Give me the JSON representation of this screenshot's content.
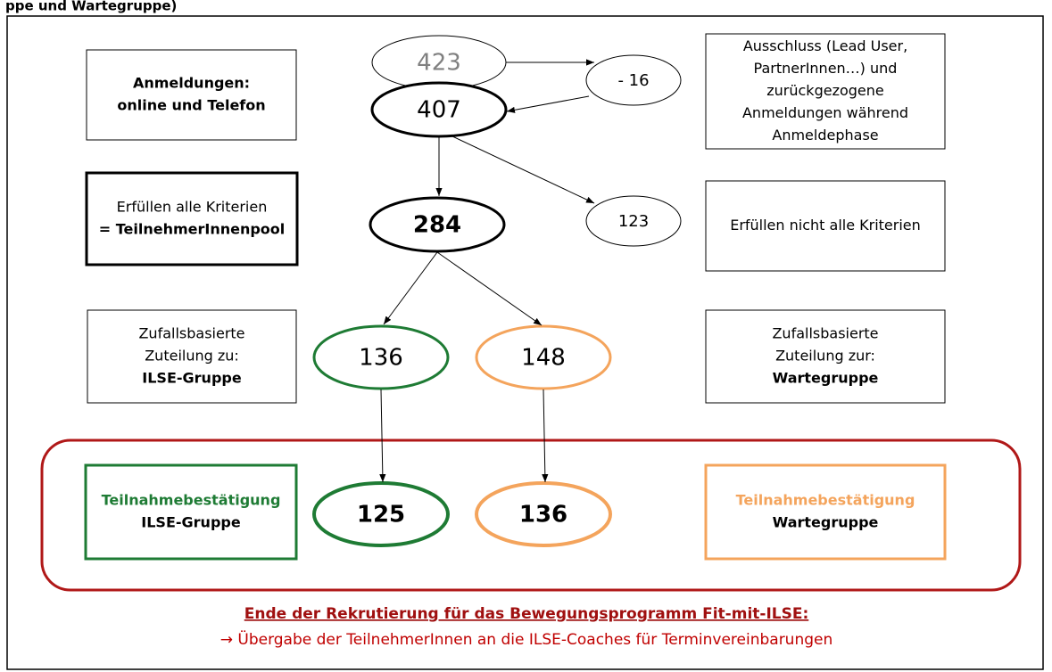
{
  "header": "ppe und Wartegruppe)",
  "boxes": [
    {
      "lines": [
        "Anmeldungen:",
        "online und Telefon"
      ],
      "bold": [
        true,
        true
      ]
    },
    {
      "lines": [
        "Ausschluss (Lead User,",
        "PartnerInnen…) und",
        "zurückgezogene",
        "Anmeldungen während",
        "Anmeldephase"
      ],
      "bold": [
        false,
        false,
        false,
        false,
        false
      ]
    },
    {
      "lines": [
        "Erfüllen alle Kriterien",
        "= TeilnehmerInnenpool"
      ],
      "bold": [
        false,
        true
      ]
    },
    {
      "lines": [
        "Erfüllen nicht alle Kriterien"
      ],
      "bold": [
        false
      ]
    },
    {
      "lines": [
        "Zufallsbasierte",
        "Zuteilung zu:",
        "ILSE-Gruppe"
      ],
      "bold": [
        false,
        false,
        true
      ]
    },
    {
      "lines": [
        "Zufallsbasierte",
        "Zuteilung zur:",
        "Wartegruppe"
      ],
      "bold": [
        false,
        false,
        true
      ]
    },
    {
      "lines": [
        "Teilnahmebestätigung",
        "ILSE-Gruppe"
      ],
      "bold": [
        true,
        true
      ]
    },
    {
      "lines": [
        "Teilnahmebestätigung",
        "Wartegruppe"
      ],
      "bold": [
        true,
        true
      ]
    }
  ],
  "ellipses": [
    {
      "label": "423"
    },
    {
      "label": "407"
    },
    {
      "label": "- 16"
    },
    {
      "label": "284"
    },
    {
      "label": "123"
    },
    {
      "label": "136"
    },
    {
      "label": "148"
    },
    {
      "label": "125"
    },
    {
      "label": "136"
    }
  ],
  "footer": {
    "title": "Ende der Rekrutierung für das Bewegungsprogramm Fit-mit-ILSE:",
    "text": "→ Übergabe der TeilnehmerInnen an die ILSE-Coaches für Terminvereinbarungen"
  }
}
